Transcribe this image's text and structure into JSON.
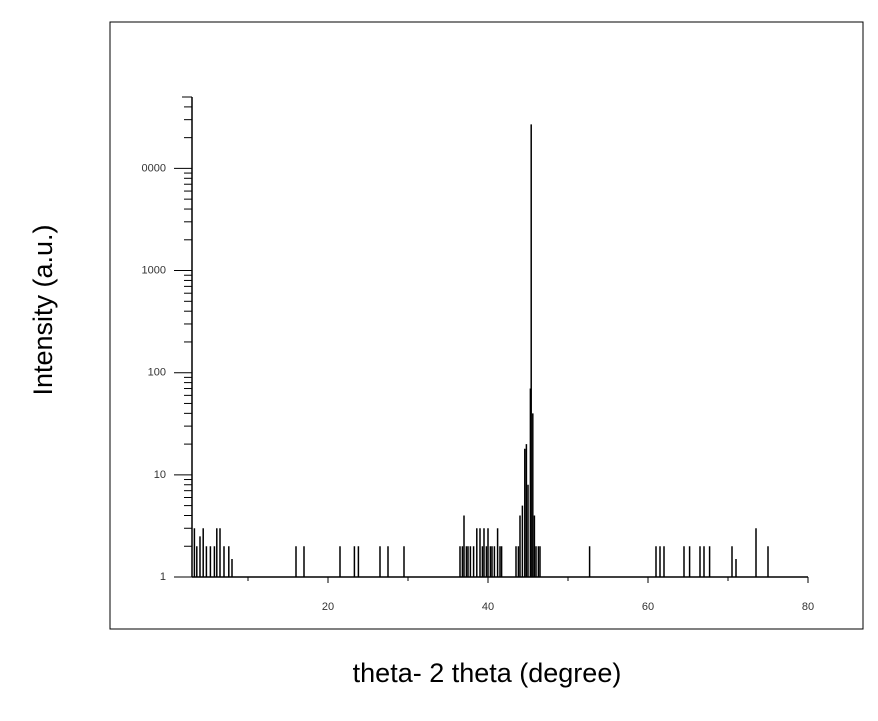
{
  "chart_data": {
    "type": "stem",
    "x_label": "theta- 2 theta (degree)",
    "y_label": "Intensity (a.u.)",
    "log_y": true,
    "color": "#000000",
    "xlim": [
      3,
      80
    ],
    "xticks": [
      20,
      40,
      60,
      80
    ],
    "xminor_ticks": [
      10,
      30,
      50,
      70
    ],
    "ylim": [
      1,
      50000
    ],
    "yticks": [
      1,
      10,
      100,
      1000,
      {
        "value": 10000,
        "label": "0000"
      }
    ],
    "minor_ticks": true,
    "x": [
      3.3,
      3.6,
      4.0,
      4.4,
      4.8,
      5.3,
      5.8,
      6.1,
      6.5,
      7.0,
      7.6,
      8.0,
      16.0,
      17.0,
      21.5,
      23.3,
      23.8,
      26.5,
      27.5,
      29.5,
      36.5,
      36.8,
      37.0,
      37.3,
      37.5,
      37.8,
      38.2,
      38.6,
      39.0,
      39.3,
      39.5,
      39.8,
      40.0,
      40.3,
      40.5,
      40.8,
      41.2,
      41.5,
      41.7,
      43.5,
      43.8,
      44.0,
      44.3,
      44.6,
      44.8,
      45.0,
      45.3,
      45.4,
      45.6,
      45.8,
      46.0,
      46.3,
      46.5,
      52.7,
      61.0,
      61.5,
      62.0,
      64.5,
      65.2,
      66.5,
      67.0,
      67.7,
      70.5,
      71.0,
      73.5,
      75.0
    ],
    "values": [
      3,
      2,
      2.5,
      3,
      2,
      2,
      2,
      3,
      3,
      2,
      2,
      1.5,
      2,
      2,
      2,
      2,
      2,
      2,
      2,
      2,
      2,
      2,
      4,
      2,
      2,
      2,
      2,
      3,
      3,
      2,
      3,
      2,
      3,
      2,
      2,
      2,
      3,
      2,
      2,
      2,
      2,
      4,
      5,
      18,
      20,
      8,
      70,
      27000,
      40,
      4,
      2,
      2,
      2,
      2,
      2,
      2,
      2,
      2,
      2,
      2,
      2,
      2,
      2,
      1.5,
      3,
      2
    ]
  }
}
